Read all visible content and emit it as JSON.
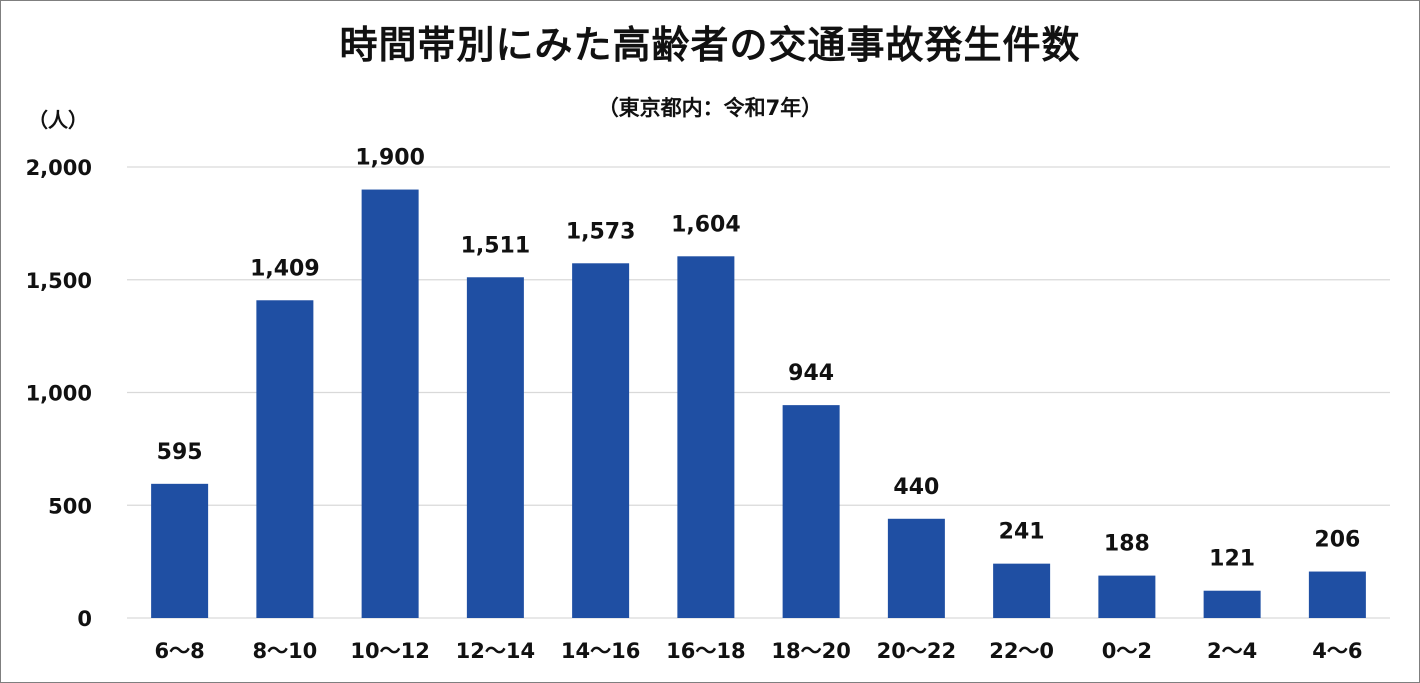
{
  "title": "時間帯別にみた高齢者の交通事故発生件数",
  "subtitle": "（東京都内：令和7年）",
  "unit_label": "（人）",
  "chart_data": {
    "type": "bar",
    "title": "時間帯別にみた高齢者の交通事故発生件数",
    "subtitle": "（東京都内：令和7年）",
    "xlabel": "",
    "ylabel": "（人）",
    "categories": [
      "6〜8",
      "8〜10",
      "10〜12",
      "12〜14",
      "14〜16",
      "16〜18",
      "18〜20",
      "20〜22",
      "22〜0",
      "0〜2",
      "2〜4",
      "4〜6"
    ],
    "values": [
      595,
      1409,
      1900,
      1511,
      1573,
      1604,
      944,
      440,
      241,
      188,
      121,
      206
    ],
    "data_labels": [
      "595",
      "1,409",
      "1,900",
      "1,511",
      "1,573",
      "1,604",
      "944",
      "440",
      "241",
      "188",
      "121",
      "206"
    ],
    "ylim": [
      0,
      2000
    ],
    "yticks": [
      0,
      500,
      1000,
      1500,
      2000
    ],
    "ytick_labels": [
      "0",
      "500",
      "1,000",
      "1,500",
      "2,000"
    ],
    "grid": true,
    "legend": "none",
    "bar_color": "#1f4fa3",
    "grid_color": "#d9d9d9"
  }
}
